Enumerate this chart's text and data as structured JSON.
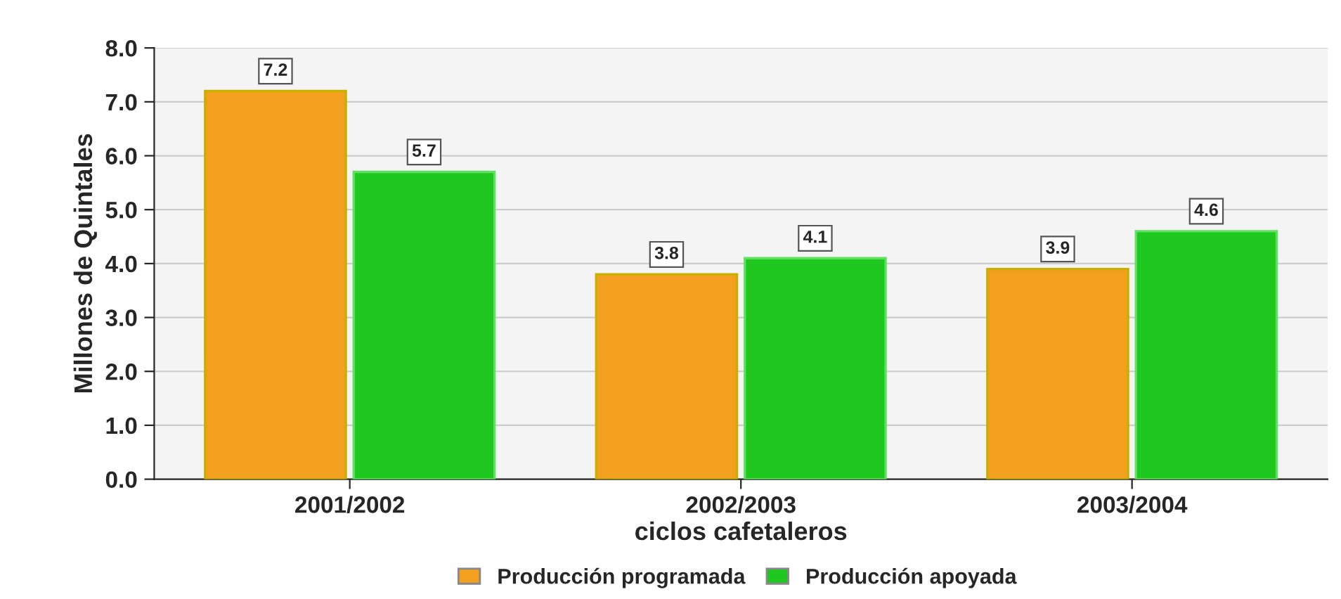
{
  "chart_data": {
    "type": "bar",
    "xlabel": "ciclos cafetaleros",
    "ylabel": "Millones de Quintales",
    "categories": [
      "2001/2002",
      "2002/2003",
      "2003/2004"
    ],
    "series": [
      {
        "name": "Producción programada",
        "color": "#f2a01e",
        "values": [
          7.2,
          3.8,
          3.9
        ]
      },
      {
        "name": "Producción apoyada",
        "color": "#1ec81e",
        "values": [
          5.7,
          4.1,
          4.6
        ]
      }
    ],
    "ylim": [
      0,
      8
    ],
    "yticks": [
      {
        "value": 0,
        "label": "0.0"
      },
      {
        "value": 1,
        "label": "1.0"
      },
      {
        "value": 2,
        "label": "2.0"
      },
      {
        "value": 3,
        "label": "3.0"
      },
      {
        "value": 4,
        "label": "4.0"
      },
      {
        "value": 5,
        "label": "5.0"
      },
      {
        "value": 6,
        "label": "6.0"
      },
      {
        "value": 7,
        "label": "7.0"
      },
      {
        "value": 8,
        "label": "8.0"
      }
    ],
    "grid": "y",
    "legend": "bottom",
    "data_labels": true
  }
}
